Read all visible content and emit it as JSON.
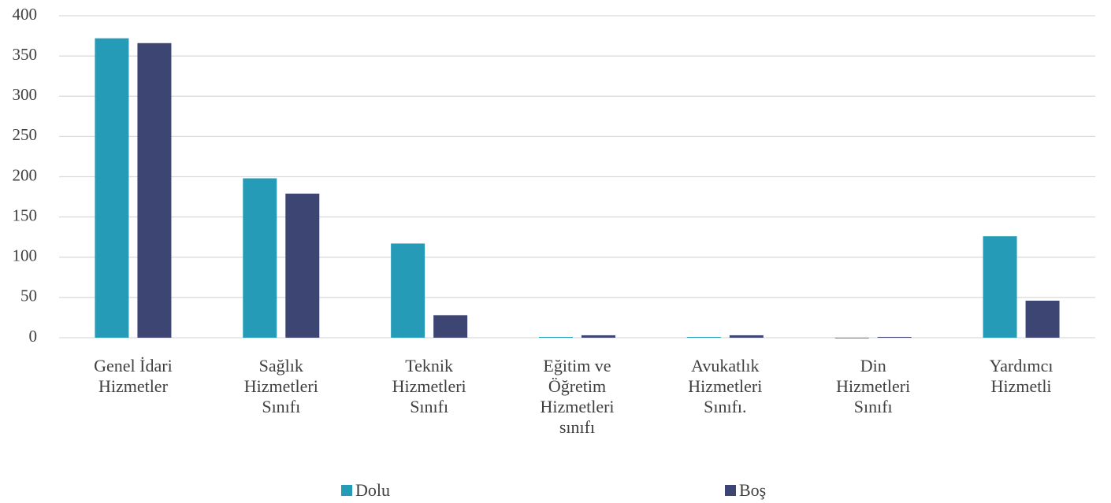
{
  "chart_data": {
    "type": "bar",
    "categories": [
      "Genel İdari\nHizmetler",
      "Sağlık\nHizmetleri\nSınıfı",
      "Teknik\nHizmetleri\nSınıfı",
      "Eğitim ve\nÖğretim\nHizmetleri\nsınıfı",
      "Avukatlık\nHizmetleri\nSınıfı.",
      "Din\nHizmetleri\nSınıfı",
      "Yardımcı\nHizmetli"
    ],
    "series": [
      {
        "name": "Dolu",
        "color": "#269bb7",
        "values": [
          372,
          198,
          117,
          1,
          1,
          0,
          126
        ]
      },
      {
        "name": "Boş",
        "color": "#3d4572",
        "values": [
          366,
          179,
          28,
          3,
          3,
          1,
          46
        ]
      }
    ],
    "ylim": [
      0,
      400
    ],
    "yticks": [
      0,
      50,
      100,
      150,
      200,
      250,
      300,
      350,
      400
    ],
    "grid": true,
    "legend": "bottom"
  }
}
